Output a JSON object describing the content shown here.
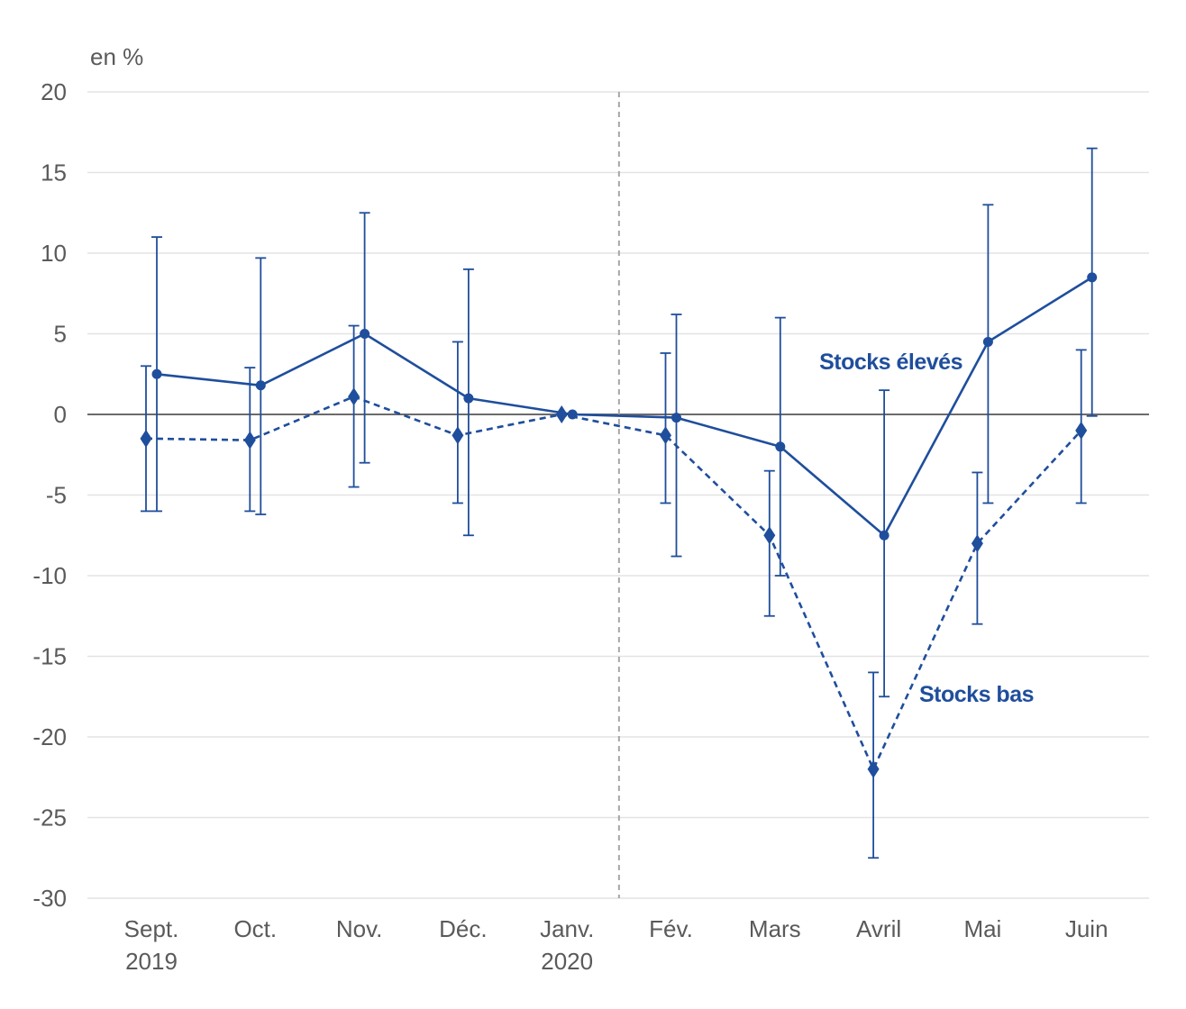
{
  "chart_data": {
    "type": "line",
    "unit_label": "en %",
    "categories": [
      [
        "Sept.",
        "2019"
      ],
      [
        "Oct."
      ],
      [
        "Nov."
      ],
      [
        "Déc."
      ],
      [
        "Janv.",
        "2020"
      ],
      [
        "Fév."
      ],
      [
        "Mars"
      ],
      [
        "Avril"
      ],
      [
        "Mai"
      ],
      [
        "Juin"
      ]
    ],
    "y_ticks": [
      20,
      15,
      10,
      5,
      0,
      -5,
      -10,
      -15,
      -20,
      -25,
      -30
    ],
    "ylim": [
      -30,
      20
    ],
    "grid": true,
    "reference_line": {
      "after_category": "Janv.",
      "style": "dashed"
    },
    "series": [
      {
        "name": "Stocks élevés",
        "marker": "circle",
        "line_style": "solid",
        "values": [
          2.5,
          1.8,
          5.0,
          1.0,
          0.0,
          -0.2,
          -2.0,
          -7.5,
          4.5,
          8.5
        ],
        "error_low": [
          -6.0,
          -6.2,
          -3.0,
          -7.5,
          0.0,
          -8.8,
          -10.0,
          -17.5,
          -5.5,
          -0.1
        ],
        "error_high": [
          11.0,
          9.7,
          12.5,
          9.0,
          0.0,
          6.2,
          6.0,
          1.5,
          13.0,
          16.5
        ]
      },
      {
        "name": "Stocks bas",
        "marker": "diamond",
        "line_style": "dashed",
        "values": [
          -1.5,
          -1.6,
          1.1,
          -1.3,
          0.0,
          -1.3,
          -7.5,
          -22.0,
          -8.0,
          -1.0
        ],
        "error_low": [
          -6.0,
          -6.0,
          -4.5,
          -5.5,
          0.0,
          -5.5,
          -12.5,
          -27.5,
          -13.0,
          -5.5
        ],
        "error_high": [
          3.0,
          2.9,
          5.5,
          4.5,
          0.0,
          3.8,
          -3.5,
          -16.0,
          -3.6,
          4.0
        ]
      }
    ],
    "colors": {
      "series": "#1f4e9c",
      "grid": "#e3e3e3",
      "zero_line": "#6b6b6b",
      "reference_line": "#a6a6a6",
      "text": "#5a5a5a"
    }
  }
}
